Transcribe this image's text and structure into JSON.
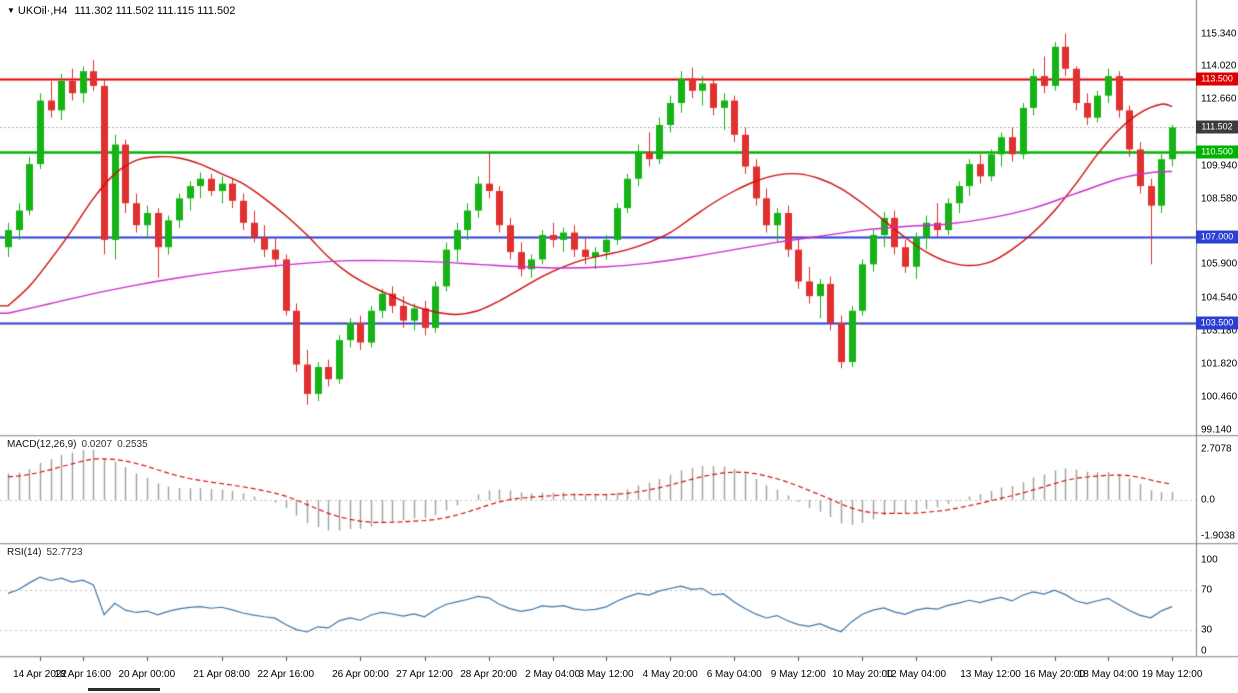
{
  "title": {
    "dropdown_icon": "▼",
    "symbol_period": "UKOil·,H4",
    "ohlc": "111.302 111.502 111.115 111.502"
  },
  "colors": {
    "background": "#ffffff",
    "candle_up": "#16b316",
    "candle_down": "#e03030",
    "ma_red": "#cc1111",
    "ma_magenta": "#cc2fcc",
    "macd_hist": "#a0a0a0",
    "macd_signal": "#d41414",
    "rsi_line": "#4077a8",
    "tag_current": "#3c3c3c",
    "separator": "#999999"
  },
  "chart_data": {
    "type": "candlestick",
    "symbol": "UKOil",
    "timeframe": "H4",
    "price_axis": {
      "min": 99.0,
      "max": 116.1,
      "labels": [
        115.34,
        114.02,
        112.66,
        109.94,
        108.58,
        105.9,
        104.54,
        103.18,
        101.82,
        100.46,
        99.14
      ]
    },
    "current_price": {
      "value": 111.502,
      "label": "111.502"
    },
    "levels": [
      {
        "price": 113.5,
        "label": "113.500",
        "color": "#dd0000",
        "width": 2
      },
      {
        "price": 110.5,
        "label": "110.500",
        "color": "#00b300",
        "width": 2.6
      },
      {
        "price": 107.0,
        "label": "107.000",
        "color": "#2c3fd4",
        "width": 2.2
      },
      {
        "price": 103.5,
        "label": "103.500",
        "color": "#2c3fd4",
        "width": 2.2
      }
    ],
    "candles": [
      [
        106.6,
        107.6,
        106.2,
        107.3
      ],
      [
        107.3,
        108.4,
        106.9,
        108.1
      ],
      [
        108.1,
        110.3,
        107.9,
        110.0
      ],
      [
        110.0,
        112.9,
        109.8,
        112.6
      ],
      [
        112.6,
        113.4,
        111.9,
        112.2
      ],
      [
        112.2,
        113.7,
        111.8,
        113.4
      ],
      [
        113.4,
        113.9,
        112.6,
        112.9
      ],
      [
        112.9,
        114.0,
        112.5,
        113.8
      ],
      [
        113.8,
        114.25,
        113.0,
        113.2
      ],
      [
        113.2,
        113.5,
        106.3,
        106.9
      ],
      [
        106.9,
        111.2,
        106.1,
        110.8
      ],
      [
        110.8,
        111.0,
        108.0,
        108.4
      ],
      [
        108.4,
        108.8,
        107.2,
        107.5
      ],
      [
        107.5,
        108.3,
        107.0,
        108.0
      ],
      [
        108.0,
        108.2,
        105.35,
        106.6
      ],
      [
        106.6,
        107.9,
        106.3,
        107.7
      ],
      [
        107.7,
        108.8,
        107.4,
        108.6
      ],
      [
        108.6,
        109.3,
        108.1,
        109.1
      ],
      [
        109.1,
        109.65,
        108.6,
        109.4
      ],
      [
        109.4,
        109.6,
        108.7,
        108.9
      ],
      [
        108.9,
        109.5,
        108.4,
        109.2
      ],
      [
        109.2,
        109.4,
        108.2,
        108.5
      ],
      [
        108.5,
        108.8,
        107.3,
        107.6
      ],
      [
        107.6,
        108.1,
        106.8,
        107.0
      ],
      [
        107.0,
        107.5,
        106.2,
        106.5
      ],
      [
        106.5,
        107.0,
        105.8,
        106.1
      ],
      [
        106.1,
        106.3,
        103.8,
        104.0
      ],
      [
        104.0,
        104.3,
        101.5,
        101.8
      ],
      [
        101.8,
        102.4,
        100.15,
        100.6
      ],
      [
        100.6,
        101.9,
        100.3,
        101.7
      ],
      [
        101.7,
        102.0,
        100.9,
        101.2
      ],
      [
        101.2,
        103.0,
        101.0,
        102.8
      ],
      [
        102.8,
        103.7,
        102.5,
        103.5
      ],
      [
        103.5,
        103.8,
        102.4,
        102.7
      ],
      [
        102.7,
        104.2,
        102.5,
        104.0
      ],
      [
        104.0,
        104.9,
        103.7,
        104.7
      ],
      [
        104.7,
        105.0,
        103.9,
        104.2
      ],
      [
        104.2,
        104.6,
        103.3,
        103.6
      ],
      [
        103.6,
        104.3,
        103.2,
        104.1
      ],
      [
        104.1,
        104.4,
        103.0,
        103.3
      ],
      [
        103.3,
        105.2,
        103.1,
        105.0
      ],
      [
        105.0,
        106.8,
        104.8,
        106.5
      ],
      [
        106.5,
        107.6,
        106.0,
        107.3
      ],
      [
        107.3,
        108.4,
        106.9,
        108.1
      ],
      [
        108.1,
        109.5,
        107.8,
        109.2
      ],
      [
        109.2,
        110.45,
        108.6,
        108.9
      ],
      [
        108.9,
        109.1,
        107.2,
        107.5
      ],
      [
        107.5,
        107.8,
        106.1,
        106.4
      ],
      [
        106.4,
        106.8,
        105.4,
        105.7
      ],
      [
        105.7,
        106.3,
        105.35,
        106.1
      ],
      [
        106.1,
        107.3,
        105.9,
        107.1
      ],
      [
        107.1,
        107.6,
        106.6,
        106.9
      ],
      [
        106.9,
        107.4,
        106.4,
        107.2
      ],
      [
        107.2,
        107.5,
        106.2,
        106.5
      ],
      [
        106.5,
        107.0,
        105.9,
        106.2
      ],
      [
        106.2,
        106.6,
        105.7,
        106.4
      ],
      [
        106.4,
        107.1,
        106.1,
        106.9
      ],
      [
        106.9,
        108.4,
        106.7,
        108.2
      ],
      [
        108.2,
        109.6,
        108.0,
        109.4
      ],
      [
        109.4,
        110.8,
        109.1,
        110.5
      ],
      [
        110.5,
        111.3,
        109.9,
        110.2
      ],
      [
        110.2,
        111.9,
        110.0,
        111.6
      ],
      [
        111.6,
        112.8,
        111.3,
        112.5
      ],
      [
        112.5,
        113.8,
        112.1,
        113.5
      ],
      [
        113.5,
        113.95,
        112.7,
        113.0
      ],
      [
        113.0,
        113.6,
        112.4,
        113.3
      ],
      [
        113.3,
        113.5,
        112.0,
        112.3
      ],
      [
        112.3,
        112.9,
        111.4,
        112.6
      ],
      [
        112.6,
        112.8,
        110.9,
        111.2
      ],
      [
        111.2,
        111.5,
        109.6,
        109.9
      ],
      [
        109.9,
        110.2,
        108.3,
        108.6
      ],
      [
        108.6,
        109.0,
        107.2,
        107.5
      ],
      [
        107.5,
        108.2,
        106.8,
        108.0
      ],
      [
        108.0,
        108.3,
        106.2,
        106.5
      ],
      [
        106.5,
        106.9,
        104.9,
        105.2
      ],
      [
        105.2,
        105.8,
        104.3,
        104.6
      ],
      [
        104.6,
        105.3,
        103.7,
        105.1
      ],
      [
        105.1,
        105.4,
        103.2,
        103.5
      ],
      [
        103.5,
        103.8,
        101.65,
        101.9
      ],
      [
        101.9,
        104.2,
        101.7,
        104.0
      ],
      [
        104.0,
        106.1,
        103.8,
        105.9
      ],
      [
        105.9,
        107.3,
        105.6,
        107.1
      ],
      [
        107.1,
        108.05,
        106.6,
        107.8
      ],
      [
        107.8,
        108.1,
        106.3,
        106.6
      ],
      [
        106.6,
        106.9,
        105.55,
        105.8
      ],
      [
        105.8,
        107.2,
        105.3,
        107.0
      ],
      [
        107.0,
        107.9,
        106.5,
        107.6
      ],
      [
        107.6,
        108.4,
        107.0,
        107.3
      ],
      [
        107.3,
        108.6,
        107.1,
        108.4
      ],
      [
        108.4,
        109.3,
        108.0,
        109.1
      ],
      [
        109.1,
        110.2,
        108.7,
        110.0
      ],
      [
        110.0,
        110.4,
        109.2,
        109.5
      ],
      [
        109.5,
        110.6,
        109.3,
        110.4
      ],
      [
        110.4,
        111.3,
        109.9,
        111.1
      ],
      [
        111.1,
        111.5,
        110.1,
        110.4
      ],
      [
        110.4,
        112.5,
        110.2,
        112.3
      ],
      [
        112.3,
        113.9,
        112.0,
        113.6
      ],
      [
        113.6,
        114.4,
        112.9,
        113.2
      ],
      [
        113.2,
        115.0,
        113.0,
        114.8
      ],
      [
        114.8,
        115.34,
        113.6,
        113.9
      ],
      [
        113.9,
        114.0,
        112.2,
        112.5
      ],
      [
        112.5,
        112.9,
        111.6,
        111.9
      ],
      [
        111.9,
        113.0,
        111.7,
        112.8
      ],
      [
        112.8,
        113.9,
        112.5,
        113.6
      ],
      [
        113.6,
        113.8,
        111.9,
        112.2
      ],
      [
        112.2,
        112.4,
        110.3,
        110.6
      ],
      [
        110.6,
        110.9,
        108.8,
        109.1
      ],
      [
        109.1,
        109.4,
        105.9,
        108.3
      ],
      [
        108.3,
        110.4,
        108.0,
        110.2
      ],
      [
        110.2,
        111.6,
        109.9,
        111.502
      ]
    ],
    "ma_red": [
      [
        0,
        104.2
      ],
      [
        2,
        105.0
      ],
      [
        4,
        106.1
      ],
      [
        6,
        107.3
      ],
      [
        8,
        108.6
      ],
      [
        10,
        109.6
      ],
      [
        12,
        110.15
      ],
      [
        14,
        110.3
      ],
      [
        16,
        110.25
      ],
      [
        18,
        110.0
      ],
      [
        20,
        109.6
      ],
      [
        22,
        109.2
      ],
      [
        24,
        108.6
      ],
      [
        26,
        107.9
      ],
      [
        28,
        107.1
      ],
      [
        30,
        106.2
      ],
      [
        32,
        105.5
      ],
      [
        34,
        105.0
      ],
      [
        36,
        104.6
      ],
      [
        38,
        104.2
      ],
      [
        40,
        103.95
      ],
      [
        42,
        103.85
      ],
      [
        44,
        104.0
      ],
      [
        46,
        104.4
      ],
      [
        48,
        104.9
      ],
      [
        50,
        105.4
      ],
      [
        52,
        105.8
      ],
      [
        54,
        106.1
      ],
      [
        56,
        106.3
      ],
      [
        58,
        106.5
      ],
      [
        60,
        106.8
      ],
      [
        62,
        107.2
      ],
      [
        64,
        107.8
      ],
      [
        66,
        108.4
      ],
      [
        68,
        108.9
      ],
      [
        70,
        109.3
      ],
      [
        72,
        109.55
      ],
      [
        74,
        109.6
      ],
      [
        76,
        109.4
      ],
      [
        78,
        109.0
      ],
      [
        80,
        108.4
      ],
      [
        82,
        107.7
      ],
      [
        84,
        107.0
      ],
      [
        86,
        106.4
      ],
      [
        88,
        106.0
      ],
      [
        90,
        105.85
      ],
      [
        92,
        106.0
      ],
      [
        94,
        106.5
      ],
      [
        96,
        107.2
      ],
      [
        98,
        108.1
      ],
      [
        100,
        109.2
      ],
      [
        102,
        110.4
      ],
      [
        104,
        111.4
      ],
      [
        106,
        112.1
      ],
      [
        108,
        112.45
      ],
      [
        109,
        112.35
      ]
    ],
    "ma_magenta": [
      [
        0,
        103.9
      ],
      [
        4,
        104.3
      ],
      [
        8,
        104.7
      ],
      [
        12,
        105.05
      ],
      [
        16,
        105.35
      ],
      [
        20,
        105.6
      ],
      [
        24,
        105.8
      ],
      [
        28,
        105.95
      ],
      [
        32,
        106.05
      ],
      [
        36,
        106.05
      ],
      [
        40,
        106.0
      ],
      [
        44,
        105.9
      ],
      [
        48,
        105.8
      ],
      [
        52,
        105.75
      ],
      [
        56,
        105.8
      ],
      [
        60,
        105.95
      ],
      [
        64,
        106.2
      ],
      [
        68,
        106.5
      ],
      [
        72,
        106.8
      ],
      [
        76,
        107.05
      ],
      [
        80,
        107.3
      ],
      [
        84,
        107.45
      ],
      [
        88,
        107.55
      ],
      [
        92,
        107.8
      ],
      [
        96,
        108.2
      ],
      [
        100,
        108.8
      ],
      [
        104,
        109.4
      ],
      [
        107,
        109.65
      ],
      [
        109,
        109.7
      ]
    ],
    "x_axis": [
      {
        "t": "14 Apr 2022",
        "i": 3
      },
      {
        "t": "18 Apr 16:00",
        "i": 7
      },
      {
        "t": "20 Apr 00:00",
        "i": 13
      },
      {
        "t": "21 Apr 08:00",
        "i": 20
      },
      {
        "t": "22 Apr 16:00",
        "i": 26
      },
      {
        "t": "26 Apr 00:00",
        "i": 33
      },
      {
        "t": "27 Apr 12:00",
        "i": 39
      },
      {
        "t": "28 Apr 20:00",
        "i": 45
      },
      {
        "t": "2 May 04:00",
        "i": 51
      },
      {
        "t": "3 May 12:00",
        "i": 56
      },
      {
        "t": "4 May 20:00",
        "i": 62
      },
      {
        "t": "6 May 04:00",
        "i": 68
      },
      {
        "t": "9 May 12:00",
        "i": 74
      },
      {
        "t": "10 May 20:00",
        "i": 80
      },
      {
        "t": "12 May 04:00",
        "i": 85
      },
      {
        "t": "13 May 12:00",
        "i": 92
      },
      {
        "t": "16 May 20:00",
        "i": 98
      },
      {
        "t": "18 May 04:00",
        "i": 103
      },
      {
        "t": "19 May 12:00",
        "i": 109
      }
    ],
    "macd": {
      "name": "MACD(12,26,9)",
      "values": [
        "0.0207",
        "0.2535"
      ],
      "params": {
        "fast": 12,
        "slow": 26,
        "signal": 9
      },
      "axis": [
        {
          "v": 2.7078,
          "t": "2.7078"
        },
        {
          "v": 0,
          "t": "0.0"
        },
        {
          "v": -1.9038,
          "t": "-1.9038"
        }
      ]
    },
    "rsi": {
      "name": "RSI(14)",
      "value": "52.7723",
      "period": 14,
      "levels": [
        70,
        30
      ],
      "axis": [
        {
          "v": 100,
          "t": "100"
        },
        {
          "v": 70,
          "t": "70"
        },
        {
          "v": 30,
          "t": "30"
        },
        {
          "v": 0,
          "t": "0"
        }
      ]
    }
  }
}
